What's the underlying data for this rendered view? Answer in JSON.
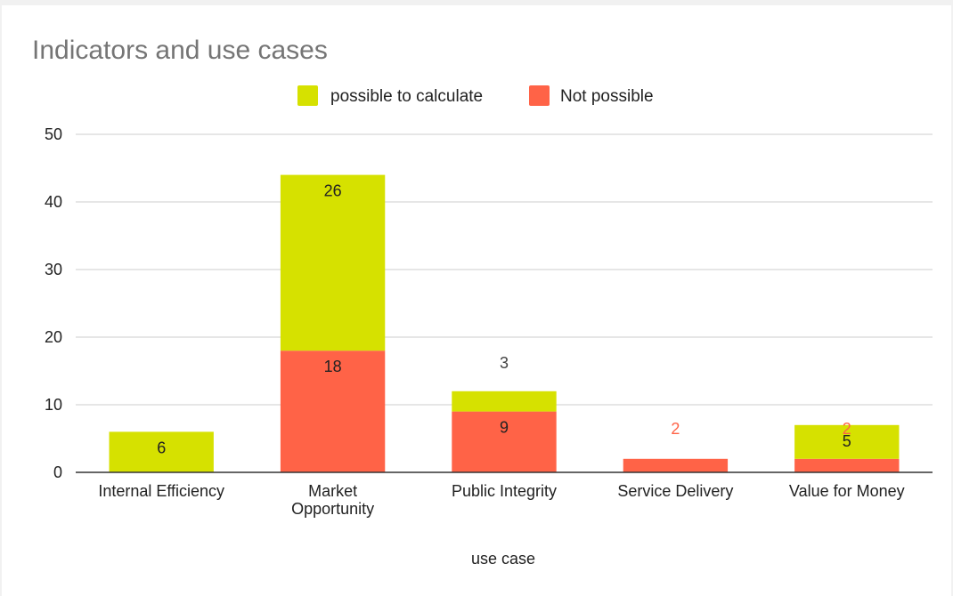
{
  "chart_data": {
    "type": "bar",
    "stacked": true,
    "title": "Indicators and use cases",
    "xlabel": "use case",
    "ylabel": "",
    "ylim": [
      0,
      50
    ],
    "yticks": [
      "0",
      "10",
      "20",
      "30",
      "40",
      "50"
    ],
    "grid": true,
    "legend_position": "top",
    "categories": [
      "Internal Efficiency",
      "Market Opportunity",
      "Public Integrity",
      "Service Delivery",
      "Value for Money"
    ],
    "category_lines": [
      [
        "Internal Efficiency"
      ],
      [
        "Market",
        "Opportunity"
      ],
      [
        "Public Integrity"
      ],
      [
        "Service Delivery"
      ],
      [
        "Value for Money"
      ]
    ],
    "series": [
      {
        "name": "Not possible",
        "color": "#ff6347",
        "values": [
          0,
          18,
          9,
          2,
          2
        ],
        "labels": [
          "",
          "18",
          "9",
          "2",
          "2"
        ]
      },
      {
        "name": "possible to calculate",
        "color": "#d6e100",
        "values": [
          6,
          26,
          3,
          0,
          5
        ],
        "labels": [
          "6",
          "26",
          "3",
          "",
          "5"
        ]
      }
    ],
    "legend_order": [
      "possible to calculate",
      "Not possible"
    ],
    "data_label_colors": {
      "inside": "#222222",
      "outside": "#424242",
      "outside_not_possible": "#ff6347"
    },
    "axis_color": "#333333",
    "grid_color": "#cccccc",
    "title_color": "#757575"
  }
}
